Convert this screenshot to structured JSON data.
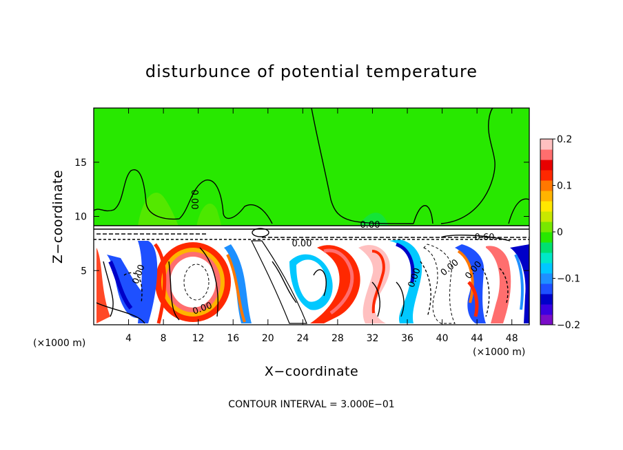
{
  "chart_data": {
    "type": "heatmap",
    "title": "disturbunce of potential temperature",
    "xlabel": "X−coordinate",
    "ylabel": "Z−coordinate",
    "x_unit": "(×1000 m)",
    "y_unit": "(×1000 m)",
    "x_ticks": [
      4,
      8,
      12,
      16,
      20,
      24,
      28,
      32,
      36,
      40,
      44,
      48
    ],
    "y_ticks": [
      5,
      10,
      15
    ],
    "xlim": [
      0,
      50
    ],
    "ylim": [
      0,
      20
    ],
    "colorbar": {
      "ticks": [
        "0.2",
        "0.1",
        "0",
        "−0.1",
        "−0.2"
      ],
      "range": [
        -0.2,
        0.2
      ],
      "colors": [
        "#7a0dc8",
        "#3a00e0",
        "#0000c8",
        "#1e50ff",
        "#1e90ff",
        "#00c8ff",
        "#00e8c8",
        "#00e070",
        "#28e800",
        "#78e800",
        "#c8e800",
        "#ffe800",
        "#ffb400",
        "#ff7800",
        "#ff2800",
        "#e80000",
        "#ff6e6e",
        "#ffc0c0"
      ]
    },
    "contour_labels": [
      "0.00",
      "0.00",
      "0.00",
      "0.60",
      "0.00",
      "0.00",
      "0.00",
      "0.00",
      "0.00"
    ],
    "annotation": "CONTOUR INTERVAL = 3.000E−01"
  }
}
